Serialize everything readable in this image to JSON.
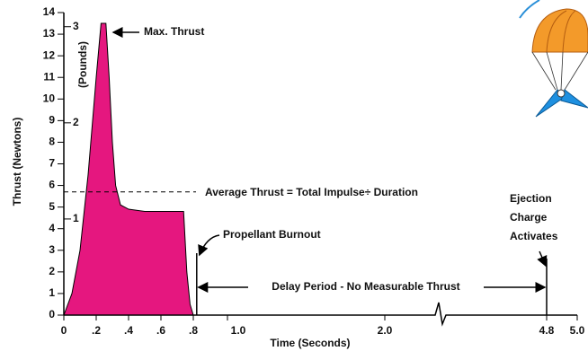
{
  "chart_data": {
    "type": "area",
    "xlabel": "Time (Seconds)",
    "ylabel": "Thrust (Newtons)",
    "y2label": "(Pounds)",
    "x": [
      0,
      0.05,
      0.1,
      0.15,
      0.2,
      0.23,
      0.26,
      0.28,
      0.3,
      0.32,
      0.35,
      0.4,
      0.5,
      0.6,
      0.7,
      0.74,
      0.76,
      0.78,
      0.8
    ],
    "values": [
      0,
      1,
      3,
      6.5,
      11,
      13.5,
      13.5,
      11,
      8,
      6,
      5.1,
      4.9,
      4.8,
      4.8,
      4.8,
      4.8,
      2,
      0.5,
      0
    ],
    "color": "#e5177f",
    "xlim": [
      0,
      5
    ],
    "xticks": [
      0,
      {
        "value": 0.2,
        "label": ".2"
      },
      {
        "value": 0.4,
        "label": ".4"
      },
      {
        "value": 0.6,
        "label": ".6"
      },
      {
        "value": 0.8,
        "label": ".8"
      },
      {
        "value": 1,
        "label": "1.0"
      },
      {
        "value": 2,
        "label": "2.0"
      },
      4.8,
      {
        "value": 5,
        "label": "5.0"
      }
    ],
    "ylim": [
      0,
      14
    ],
    "yticks": [
      0,
      1,
      2,
      3,
      4,
      5,
      6,
      7,
      8,
      9,
      10,
      11,
      12,
      13,
      14
    ],
    "y2lim": [
      0,
      3.147
    ],
    "y2ticks": [
      1,
      2,
      3
    ],
    "average_thrust": 5.7,
    "burnout_time": 0.82,
    "ejection_time": 4.8,
    "annotations": {
      "max_thrust": "Max. Thrust",
      "average": "Average Thrust = Total Impulse÷ Duration",
      "burnout": "Propellant Burnout",
      "delay": "Delay Period - No Measurable Thrust",
      "ejection": [
        "Ejection",
        "Charge",
        "Activates"
      ]
    }
  }
}
